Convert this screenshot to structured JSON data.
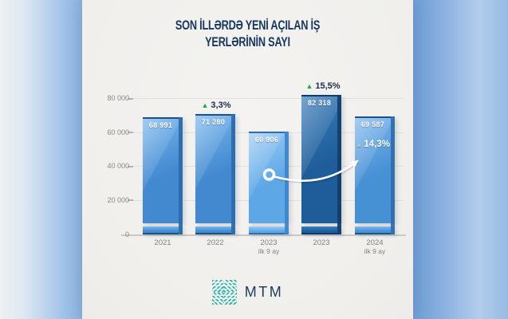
{
  "title": {
    "line1": "SON İLLƏRDƏ YENİ AÇILAN İŞ",
    "line2": "YERLƏRİNİN SAYI"
  },
  "chart_data": {
    "type": "bar",
    "title": "SON İLLƏRDƏ YENİ AÇILAN İŞ YERLƏRİNİN SAYI",
    "categories": [
      "2021",
      "2022",
      "2023 ilk 9 ay",
      "2023",
      "2024 ilk 9 ay"
    ],
    "values": [
      68991,
      71280,
      60906,
      82318,
      69587
    ],
    "value_labels": [
      "68 991",
      "71 280",
      "60 906",
      "82 318",
      "69 587"
    ],
    "ylim": [
      0,
      88000
    ],
    "ytick_labels": [
      "80 000",
      "60 000",
      "40 000",
      "20 000",
      "0"
    ],
    "grid": true,
    "legend": false,
    "annotations": [
      {
        "bar": "2022",
        "change": "▲ 3,3%"
      },
      {
        "bar": "2023",
        "change": "▲ 15,5%"
      },
      {
        "bar": "2024 ilk 9 ay",
        "change": "▲ 14,3%",
        "note": "white arrow drawn from 2023 ilk 9 ay bar to this label"
      }
    ],
    "bar_colors": [
      "#4289d0",
      "#4289d0",
      "#5ea7e7",
      "#1e5d99",
      "#4690d4"
    ]
  },
  "bars": [
    {
      "year": "2021",
      "sub": "",
      "value_label": "68 991"
    },
    {
      "year": "2022",
      "sub": "",
      "value_label": "71 280",
      "pct": "3,3%"
    },
    {
      "year": "2023",
      "sub": "ilk 9 ay",
      "value_label": "60 906"
    },
    {
      "year": "2023",
      "sub": "",
      "value_label": "82 318",
      "pct": "15,5%"
    },
    {
      "year": "2024",
      "sub": "ilk 9 ay",
      "value_label": "69 587",
      "pct": "14,3%"
    }
  ],
  "icons": {
    "up_triangle": "▲"
  },
  "logo": {
    "text": "MTM"
  },
  "colors": {
    "title_navy": "#17375e",
    "green_triangle": "#21ab4d",
    "pale_green_triangle": "#9cd6a4",
    "card_bg": "#f2f1ee",
    "logo_teal": "#2eb6ad",
    "backdrop_blue": "#8bb3e0"
  }
}
